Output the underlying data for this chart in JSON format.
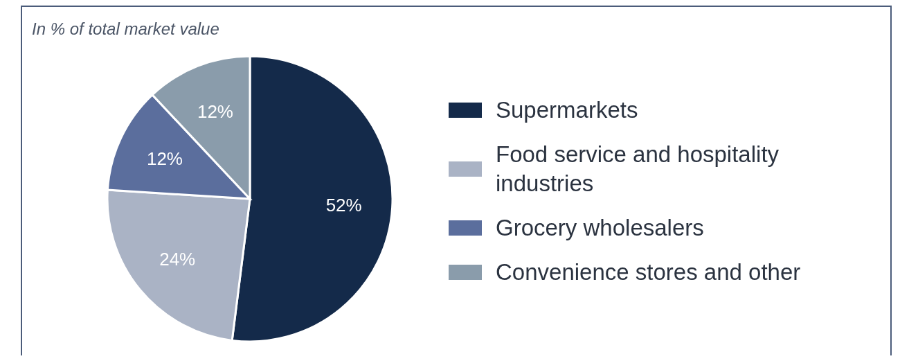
{
  "chart_data": {
    "type": "pie",
    "subtitle": "In % of total market value",
    "categories": [
      "Supermarkets",
      "Food service and hospitality industries",
      "Grocery wholesalers",
      "Convenience stores and other"
    ],
    "values": [
      52,
      24,
      12,
      12
    ],
    "colors": [
      "#142a4a",
      "#aab3c5",
      "#5b6e9d",
      "#8a9cab"
    ],
    "value_labels": [
      "52%",
      "24%",
      "12%",
      "12%"
    ],
    "legend": "right"
  }
}
